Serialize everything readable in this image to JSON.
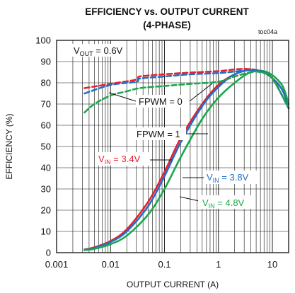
{
  "chart_data": {
    "type": "line",
    "title": "EFFICIENCY vs. OUTPUT CURRENT",
    "subtitle": "(4-PHASE)",
    "tag": "toc04a",
    "xlabel": "OUTPUT CURRENT (A)",
    "ylabel": "EFFICIENCY (%)",
    "x_scale": "log",
    "xlim": [
      0.001,
      20
    ],
    "ylim": [
      0,
      100
    ],
    "x_ticks": [
      0.001,
      0.01,
      0.1,
      1,
      10
    ],
    "x_tick_labels": [
      "0.001",
      "0.01",
      "0.1",
      "1",
      "10"
    ],
    "y_ticks": [
      0,
      10,
      20,
      30,
      40,
      50,
      60,
      70,
      80,
      90,
      100
    ],
    "y_tick_labels": [
      "0",
      "10",
      "20",
      "30",
      "40",
      "50",
      "60",
      "70",
      "80",
      "90",
      "100"
    ],
    "grid": true,
    "series": [
      {
        "name": "VIN = 3.4V, FPWM = 1",
        "color": "#e8202a",
        "dash": false,
        "x": [
          0.0033,
          0.005,
          0.01,
          0.02,
          0.05,
          0.1,
          0.2,
          0.5,
          1,
          2,
          4,
          8,
          15,
          20
        ],
        "y": [
          1.5,
          2.5,
          5.5,
          11,
          24,
          38,
          54,
          70,
          79,
          84,
          86,
          84,
          77,
          68
        ]
      },
      {
        "name": "VIN = 3.8V, FPWM = 1",
        "color": "#1f6fc8",
        "dash": false,
        "x": [
          0.0033,
          0.005,
          0.01,
          0.02,
          0.05,
          0.1,
          0.2,
          0.5,
          1,
          2,
          4,
          8,
          15,
          20
        ],
        "y": [
          1.3,
          2.2,
          5,
          10,
          22,
          36,
          52,
          69,
          78,
          84,
          86,
          84,
          77,
          68
        ]
      },
      {
        "name": "VIN = 4.8V, FPWM = 1",
        "color": "#1aa84a",
        "dash": false,
        "x": [
          0.0033,
          0.005,
          0.01,
          0.02,
          0.05,
          0.1,
          0.2,
          0.5,
          1,
          2,
          4,
          8,
          15,
          20
        ],
        "y": [
          1.2,
          1.8,
          4,
          8,
          18,
          30,
          45,
          63,
          73,
          80,
          85,
          85,
          79,
          70
        ]
      },
      {
        "name": "VIN = 3.4V, FPWM = 0",
        "color": "#e8202a",
        "dash": true,
        "x": [
          0.0033,
          0.01,
          0.03,
          0.035,
          0.1,
          0.3,
          1,
          2,
          3.5,
          6,
          10,
          20
        ],
        "y": [
          77.5,
          79.5,
          81.5,
          83,
          84,
          84.8,
          85.5,
          86.3,
          86.5,
          85.5,
          82,
          68
        ]
      },
      {
        "name": "VIN = 3.8V, FPWM = 0",
        "color": "#1f6fc8",
        "dash": true,
        "x": [
          0.0033,
          0.01,
          0.03,
          0.035,
          0.1,
          0.3,
          1,
          2,
          4,
          6,
          10,
          20
        ],
        "y": [
          75,
          79,
          80.5,
          82,
          83,
          84,
          84.6,
          85.3,
          86,
          85.5,
          82,
          68
        ]
      },
      {
        "name": "VIN = 4.8V, FPWM = 0",
        "color": "#1aa84a",
        "dash": true,
        "x": [
          0.0033,
          0.005,
          0.01,
          0.02,
          0.035,
          0.1,
          0.3,
          1,
          2,
          4,
          6,
          10,
          20
        ],
        "y": [
          66,
          70,
          74,
          76,
          77.5,
          78.5,
          79.5,
          80.5,
          83,
          85,
          85,
          82,
          68
        ]
      }
    ],
    "annotations": {
      "vout": {
        "main": "V",
        "sub": "OUT",
        "rest": " = 0.6V",
        "color": "#111111"
      },
      "fpwm0": {
        "text": "FPWM = 0",
        "color": "#111111"
      },
      "fpwm1": {
        "text": "FPWM = 1",
        "color": "#111111"
      },
      "vin34": {
        "main": "V",
        "sub": "IN",
        "rest": " = 3.4V",
        "color": "#e8202a"
      },
      "vin38": {
        "main": "V",
        "sub": "IN",
        "rest": " = 3.8V",
        "color": "#1f6fc8"
      },
      "vin48": {
        "main": "V",
        "sub": "IN",
        "rest": " = 4.8V",
        "color": "#1aa84a"
      }
    }
  }
}
